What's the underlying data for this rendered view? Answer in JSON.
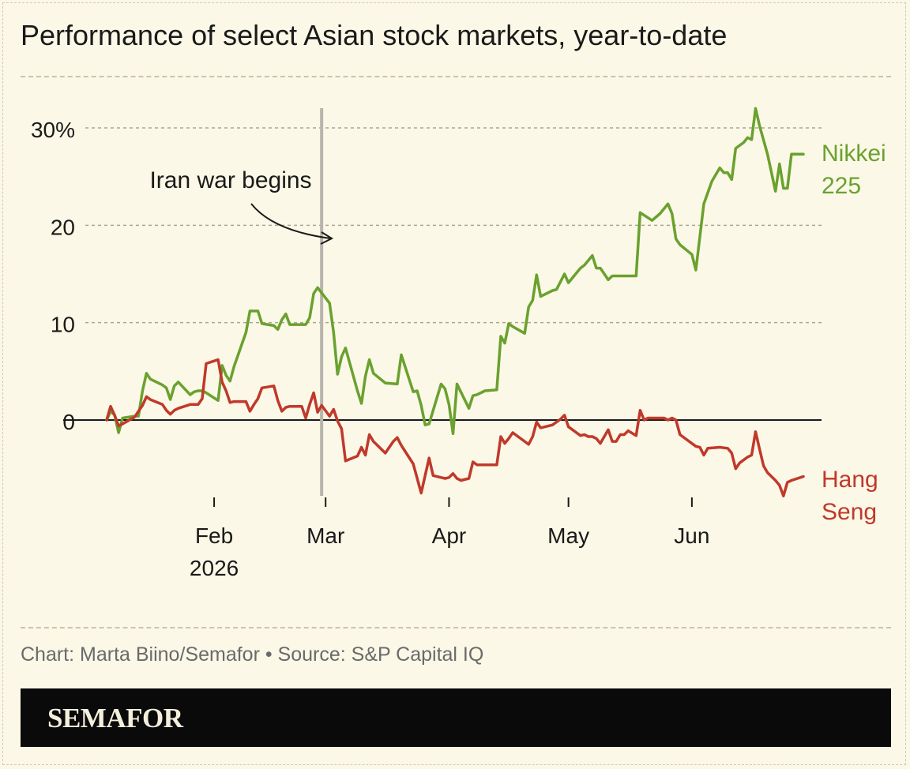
{
  "title": "Performance of select Asian stock markets, year-to-date",
  "credit": "Chart: Marta Biino/Semafor • Source: S&P Capital IQ",
  "brand": "SEMAFOR",
  "colors": {
    "background": "#fbf8e7",
    "nikkei": "#6aa12f",
    "hang_seng": "#c0392b",
    "event_line": "#b7b5ac"
  },
  "chart_data": {
    "type": "line",
    "title": "Performance of select Asian stock markets, year-to-date",
    "xlabel": "",
    "ylabel": "",
    "ylim": [
      -8,
      32
    ],
    "yticks": [
      {
        "value": 30,
        "label": "30%"
      },
      {
        "value": 20,
        "label": "20"
      },
      {
        "value": 10,
        "label": "10"
      },
      {
        "value": 0,
        "label": "0"
      }
    ],
    "xticks": [
      {
        "date": "2026-02-01",
        "label": "Feb",
        "sublabel": "2026"
      },
      {
        "date": "2026-03-01",
        "label": "Mar",
        "sublabel": ""
      },
      {
        "date": "2026-04-01",
        "label": "Apr",
        "sublabel": ""
      },
      {
        "date": "2026-05-01",
        "label": "May",
        "sublabel": ""
      },
      {
        "date": "2026-06-01",
        "label": "Jun",
        "sublabel": ""
      }
    ],
    "grid": true,
    "annotation": {
      "date": "2026-02-28",
      "text": "Iran war begins"
    },
    "series": [
      {
        "name": "Nikkei 225",
        "label_lines": [
          "Nikkei",
          "225"
        ],
        "color": "#6aa12f",
        "points": [
          [
            "2026-01-05",
            0.0
          ],
          [
            "2026-01-06",
            0.9
          ],
          [
            "2026-01-07",
            0.5
          ],
          [
            "2026-01-08",
            -1.3
          ],
          [
            "2026-01-09",
            0.2
          ],
          [
            "2026-01-12",
            0.4
          ],
          [
            "2026-01-13",
            0.4
          ],
          [
            "2026-01-14",
            3.0
          ],
          [
            "2026-01-15",
            4.8
          ],
          [
            "2026-01-16",
            4.2
          ],
          [
            "2026-01-19",
            3.6
          ],
          [
            "2026-01-20",
            3.3
          ],
          [
            "2026-01-21",
            2.1
          ],
          [
            "2026-01-22",
            3.5
          ],
          [
            "2026-01-23",
            3.9
          ],
          [
            "2026-01-26",
            2.6
          ],
          [
            "2026-01-27",
            2.9
          ],
          [
            "2026-01-28",
            3.0
          ],
          [
            "2026-01-29",
            3.0
          ],
          [
            "2026-01-30",
            2.8
          ],
          [
            "2026-02-02",
            2.0
          ],
          [
            "2026-02-03",
            5.6
          ],
          [
            "2026-02-04",
            4.6
          ],
          [
            "2026-02-05",
            4.0
          ],
          [
            "2026-02-06",
            5.5
          ],
          [
            "2026-02-09",
            9.0
          ],
          [
            "2026-02-10",
            11.2
          ],
          [
            "2026-02-12",
            11.2
          ],
          [
            "2026-02-13",
            9.9
          ],
          [
            "2026-02-16",
            9.7
          ],
          [
            "2026-02-17",
            9.3
          ],
          [
            "2026-02-18",
            10.3
          ],
          [
            "2026-02-19",
            10.9
          ],
          [
            "2026-02-20",
            9.8
          ],
          [
            "2026-02-24",
            9.8
          ],
          [
            "2026-02-25",
            10.5
          ],
          [
            "2026-02-26",
            13.0
          ],
          [
            "2026-02-27",
            13.6
          ],
          [
            "2026-03-02",
            12.0
          ],
          [
            "2026-03-03",
            9.0
          ],
          [
            "2026-03-04",
            4.7
          ],
          [
            "2026-03-05",
            6.5
          ],
          [
            "2026-03-06",
            7.4
          ],
          [
            "2026-03-09",
            3.0
          ],
          [
            "2026-03-10",
            1.7
          ],
          [
            "2026-03-11",
            4.5
          ],
          [
            "2026-03-12",
            6.2
          ],
          [
            "2026-03-13",
            4.8
          ],
          [
            "2026-03-16",
            3.8
          ],
          [
            "2026-03-19",
            3.7
          ],
          [
            "2026-03-20",
            6.7
          ],
          [
            "2026-03-23",
            2.9
          ],
          [
            "2026-03-24",
            3.0
          ],
          [
            "2026-03-25",
            1.5
          ],
          [
            "2026-03-26",
            -0.5
          ],
          [
            "2026-03-27",
            -0.4
          ],
          [
            "2026-03-30",
            3.7
          ],
          [
            "2026-03-31",
            3.2
          ],
          [
            "2026-04-01",
            1.6
          ],
          [
            "2026-04-02",
            -1.4
          ],
          [
            "2026-04-03",
            3.7
          ],
          [
            "2026-04-06",
            1.2
          ],
          [
            "2026-04-07",
            2.5
          ],
          [
            "2026-04-08",
            2.6
          ],
          [
            "2026-04-09",
            2.8
          ],
          [
            "2026-04-10",
            3.0
          ],
          [
            "2026-04-13",
            3.1
          ],
          [
            "2026-04-14",
            8.6
          ],
          [
            "2026-04-15",
            7.9
          ],
          [
            "2026-04-16",
            9.9
          ],
          [
            "2026-04-17",
            9.6
          ],
          [
            "2026-04-20",
            8.9
          ],
          [
            "2026-04-21",
            11.6
          ],
          [
            "2026-04-22",
            12.3
          ],
          [
            "2026-04-23",
            14.9
          ],
          [
            "2026-04-24",
            12.7
          ],
          [
            "2026-04-27",
            13.3
          ],
          [
            "2026-04-28",
            13.4
          ],
          [
            "2026-04-30",
            15.0
          ],
          [
            "2026-05-01",
            14.1
          ],
          [
            "2026-05-04",
            15.6
          ],
          [
            "2026-05-05",
            15.9
          ],
          [
            "2026-05-07",
            16.9
          ],
          [
            "2026-05-08",
            15.6
          ],
          [
            "2026-05-09",
            15.6
          ],
          [
            "2026-05-11",
            14.4
          ],
          [
            "2026-05-12",
            14.8
          ],
          [
            "2026-05-13",
            14.8
          ],
          [
            "2026-05-18",
            14.8
          ],
          [
            "2026-05-19",
            21.3
          ],
          [
            "2026-05-22",
            20.5
          ],
          [
            "2026-05-24",
            21.2
          ],
          [
            "2026-05-26",
            22.2
          ],
          [
            "2026-05-27",
            21.2
          ],
          [
            "2026-05-28",
            18.6
          ],
          [
            "2026-05-29",
            18.0
          ],
          [
            "2026-06-01",
            17.0
          ],
          [
            "2026-06-02",
            15.4
          ],
          [
            "2026-06-04",
            22.2
          ],
          [
            "2026-06-06",
            24.5
          ],
          [
            "2026-06-08",
            25.9
          ],
          [
            "2026-06-09",
            25.4
          ],
          [
            "2026-06-10",
            25.4
          ],
          [
            "2026-06-11",
            24.7
          ],
          [
            "2026-06-12",
            27.9
          ],
          [
            "2026-06-14",
            28.5
          ],
          [
            "2026-06-15",
            29.0
          ],
          [
            "2026-06-16",
            28.8
          ],
          [
            "2026-06-17",
            32.0
          ],
          [
            "2026-06-18",
            30.2
          ],
          [
            "2026-06-20",
            27.3
          ],
          [
            "2026-06-22",
            23.5
          ],
          [
            "2026-06-23",
            26.3
          ],
          [
            "2026-06-24",
            23.8
          ],
          [
            "2026-06-25",
            23.8
          ],
          [
            "2026-06-26",
            27.3
          ],
          [
            "2026-06-28",
            27.3
          ],
          [
            "2026-06-29",
            27.3
          ]
        ]
      },
      {
        "name": "Hang Seng",
        "label_lines": [
          "Hang",
          "Seng"
        ],
        "color": "#c0392b",
        "points": [
          [
            "2026-01-05",
            0.0
          ],
          [
            "2026-01-06",
            1.4
          ],
          [
            "2026-01-07",
            0.5
          ],
          [
            "2026-01-08",
            -0.6
          ],
          [
            "2026-01-09",
            -0.4
          ],
          [
            "2026-01-12",
            0.3
          ],
          [
            "2026-01-13",
            0.9
          ],
          [
            "2026-01-14",
            1.5
          ],
          [
            "2026-01-15",
            2.4
          ],
          [
            "2026-01-16",
            2.1
          ],
          [
            "2026-01-19",
            1.6
          ],
          [
            "2026-01-20",
            1.0
          ],
          [
            "2026-01-21",
            0.6
          ],
          [
            "2026-01-22",
            1.0
          ],
          [
            "2026-01-23",
            1.2
          ],
          [
            "2026-01-26",
            1.6
          ],
          [
            "2026-01-27",
            1.6
          ],
          [
            "2026-01-28",
            1.6
          ],
          [
            "2026-01-29",
            2.2
          ],
          [
            "2026-01-30",
            5.8
          ],
          [
            "2026-02-02",
            6.2
          ],
          [
            "2026-02-03",
            3.9
          ],
          [
            "2026-02-04",
            3.0
          ],
          [
            "2026-02-05",
            1.8
          ],
          [
            "2026-02-06",
            1.9
          ],
          [
            "2026-02-09",
            1.9
          ],
          [
            "2026-02-10",
            0.9
          ],
          [
            "2026-02-11",
            1.6
          ],
          [
            "2026-02-12",
            2.2
          ],
          [
            "2026-02-13",
            3.3
          ],
          [
            "2026-02-16",
            3.5
          ],
          [
            "2026-02-17",
            2.0
          ],
          [
            "2026-02-18",
            0.9
          ],
          [
            "2026-02-19",
            1.3
          ],
          [
            "2026-02-20",
            1.4
          ],
          [
            "2026-02-23",
            1.4
          ],
          [
            "2026-02-24",
            0.2
          ],
          [
            "2026-02-25",
            1.6
          ],
          [
            "2026-02-26",
            2.8
          ],
          [
            "2026-02-27",
            0.8
          ],
          [
            "2026-02-28",
            1.5
          ],
          [
            "2026-03-02",
            0.4
          ],
          [
            "2026-03-03",
            1.1
          ],
          [
            "2026-03-04",
            -0.1
          ],
          [
            "2026-03-05",
            -0.9
          ],
          [
            "2026-03-06",
            -4.2
          ],
          [
            "2026-03-09",
            -3.7
          ],
          [
            "2026-03-10",
            -2.8
          ],
          [
            "2026-03-11",
            -3.6
          ],
          [
            "2026-03-12",
            -1.5
          ],
          [
            "2026-03-13",
            -2.2
          ],
          [
            "2026-03-16",
            -3.4
          ],
          [
            "2026-03-17",
            -2.8
          ],
          [
            "2026-03-18",
            -2.2
          ],
          [
            "2026-03-19",
            -1.8
          ],
          [
            "2026-03-20",
            -2.6
          ],
          [
            "2026-03-23",
            -4.5
          ],
          [
            "2026-03-25",
            -7.5
          ],
          [
            "2026-03-27",
            -3.9
          ],
          [
            "2026-03-28",
            -5.7
          ],
          [
            "2026-03-30",
            -5.9
          ],
          [
            "2026-03-31",
            -6.0
          ],
          [
            "2026-04-01",
            -5.9
          ],
          [
            "2026-04-02",
            -5.5
          ],
          [
            "2026-04-03",
            -6.0
          ],
          [
            "2026-04-04",
            -6.2
          ],
          [
            "2026-04-06",
            -6.0
          ],
          [
            "2026-04-07",
            -4.3
          ],
          [
            "2026-04-08",
            -4.6
          ],
          [
            "2026-04-09",
            -4.6
          ],
          [
            "2026-04-13",
            -4.6
          ],
          [
            "2026-04-14",
            -1.7
          ],
          [
            "2026-04-15",
            -2.4
          ],
          [
            "2026-04-16",
            -1.9
          ],
          [
            "2026-04-17",
            -1.3
          ],
          [
            "2026-04-20",
            -2.2
          ],
          [
            "2026-04-21",
            -2.5
          ],
          [
            "2026-04-22",
            -1.7
          ],
          [
            "2026-04-23",
            -0.2
          ],
          [
            "2026-04-24",
            -0.8
          ],
          [
            "2026-04-27",
            -0.5
          ],
          [
            "2026-04-28",
            -0.2
          ],
          [
            "2026-04-29",
            0.1
          ],
          [
            "2026-04-30",
            0.5
          ],
          [
            "2026-05-01",
            -0.7
          ],
          [
            "2026-05-04",
            -1.6
          ],
          [
            "2026-05-05",
            -1.5
          ],
          [
            "2026-05-06",
            -1.7
          ],
          [
            "2026-05-07",
            -1.7
          ],
          [
            "2026-05-08",
            -1.9
          ],
          [
            "2026-05-09",
            -2.4
          ],
          [
            "2026-05-11",
            -1.0
          ],
          [
            "2026-05-12",
            -2.2
          ],
          [
            "2026-05-13",
            -2.2
          ],
          [
            "2026-05-14",
            -1.5
          ],
          [
            "2026-05-15",
            -1.5
          ],
          [
            "2026-05-16",
            -1.1
          ],
          [
            "2026-05-18",
            -1.6
          ],
          [
            "2026-05-19",
            1.0
          ],
          [
            "2026-05-20",
            0.0
          ],
          [
            "2026-05-21",
            0.2
          ],
          [
            "2026-05-25",
            0.2
          ],
          [
            "2026-05-26",
            0.0
          ],
          [
            "2026-05-27",
            0.2
          ],
          [
            "2026-05-28",
            0.0
          ],
          [
            "2026-05-29",
            -1.5
          ],
          [
            "2026-05-31",
            -2.1
          ],
          [
            "2026-06-02",
            -2.7
          ],
          [
            "2026-06-03",
            -2.8
          ],
          [
            "2026-06-04",
            -3.6
          ],
          [
            "2026-06-05",
            -2.9
          ],
          [
            "2026-06-08",
            -2.8
          ],
          [
            "2026-06-10",
            -2.9
          ],
          [
            "2026-06-11",
            -3.4
          ],
          [
            "2026-06-12",
            -5.0
          ],
          [
            "2026-06-13",
            -4.4
          ],
          [
            "2026-06-15",
            -3.8
          ],
          [
            "2026-06-16",
            -3.6
          ],
          [
            "2026-06-17",
            -1.2
          ],
          [
            "2026-06-18",
            -3.0
          ],
          [
            "2026-06-19",
            -4.7
          ],
          [
            "2026-06-20",
            -5.4
          ],
          [
            "2026-06-22",
            -6.2
          ],
          [
            "2026-06-23",
            -6.7
          ],
          [
            "2026-06-24",
            -7.8
          ],
          [
            "2026-06-25",
            -6.4
          ],
          [
            "2026-06-26",
            -6.2
          ],
          [
            "2026-06-29",
            -5.8
          ]
        ]
      }
    ]
  }
}
